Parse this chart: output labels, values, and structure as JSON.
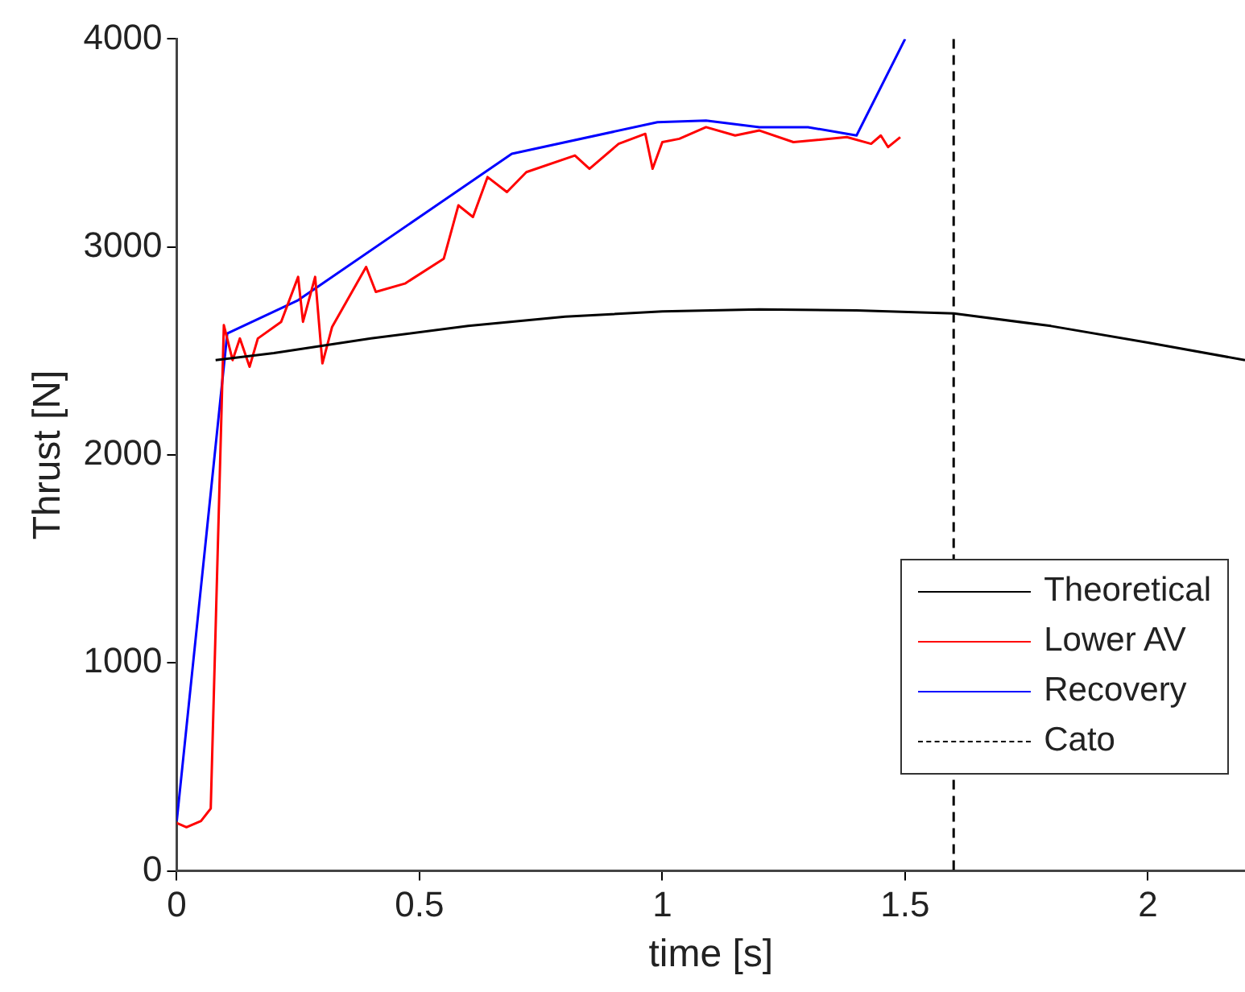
{
  "chart_data": {
    "type": "line",
    "xlabel": "time [s]",
    "ylabel": "Thrust [N]",
    "xlim": [
      0,
      2.2
    ],
    "xticks": [
      0,
      0.5,
      1,
      1.5,
      2
    ],
    "ylim": [
      0,
      4000
    ],
    "yticks": [
      0,
      1000,
      2000,
      3000,
      4000
    ],
    "grid": false,
    "legend": "bottom right",
    "marker": "none",
    "line_style": "solid",
    "series": [
      {
        "name": "Theoretical",
        "color": "#000000",
        "x": [
          0.08,
          0.2,
          0.4,
          0.6,
          0.8,
          1.0,
          1.2,
          1.4,
          1.6,
          1.8,
          2.0,
          2.2
        ],
        "values": [
          2456,
          2490,
          2560,
          2620,
          2665,
          2690,
          2700,
          2695,
          2680,
          2620,
          2540,
          2456
        ]
      },
      {
        "name": "Lower AV",
        "color": "#ff0000",
        "x": [
          0,
          0.02,
          0.05,
          0.07,
          0.097,
          0.115,
          0.13,
          0.15,
          0.167,
          0.215,
          0.25,
          0.26,
          0.285,
          0.3,
          0.32,
          0.39,
          0.41,
          0.47,
          0.55,
          0.58,
          0.61,
          0.64,
          0.68,
          0.72,
          0.82,
          0.85,
          0.91,
          0.965,
          0.98,
          1.0,
          1.035,
          1.09,
          1.15,
          1.2,
          1.27,
          1.38,
          1.43,
          1.45,
          1.465,
          1.49
        ],
        "values": [
          230,
          210,
          240,
          300,
          2624,
          2456,
          2560,
          2424,
          2560,
          2640,
          2856,
          2640,
          2856,
          2440,
          2616,
          2904,
          2784,
          2824,
          2944,
          3200,
          3144,
          3336,
          3264,
          3360,
          3440,
          3376,
          3496,
          3544,
          3376,
          3504,
          3520,
          3576,
          3536,
          3560,
          3504,
          3528,
          3496,
          3536,
          3480,
          3528
        ]
      },
      {
        "name": "Recovery",
        "color": "#0000ff",
        "x": [
          0,
          0.104,
          0.25,
          0.295,
          0.69,
          0.99,
          1.09,
          1.2,
          1.3,
          1.4,
          1.5
        ],
        "values": [
          240,
          2584,
          2744,
          2816,
          3448,
          3600,
          3608,
          3576,
          3576,
          3536,
          4000
        ]
      }
    ],
    "ref_lines": [
      {
        "axis": "x",
        "value": 1.6,
        "label": "Cato",
        "color": "#000000",
        "line_style": "dashed"
      }
    ]
  }
}
